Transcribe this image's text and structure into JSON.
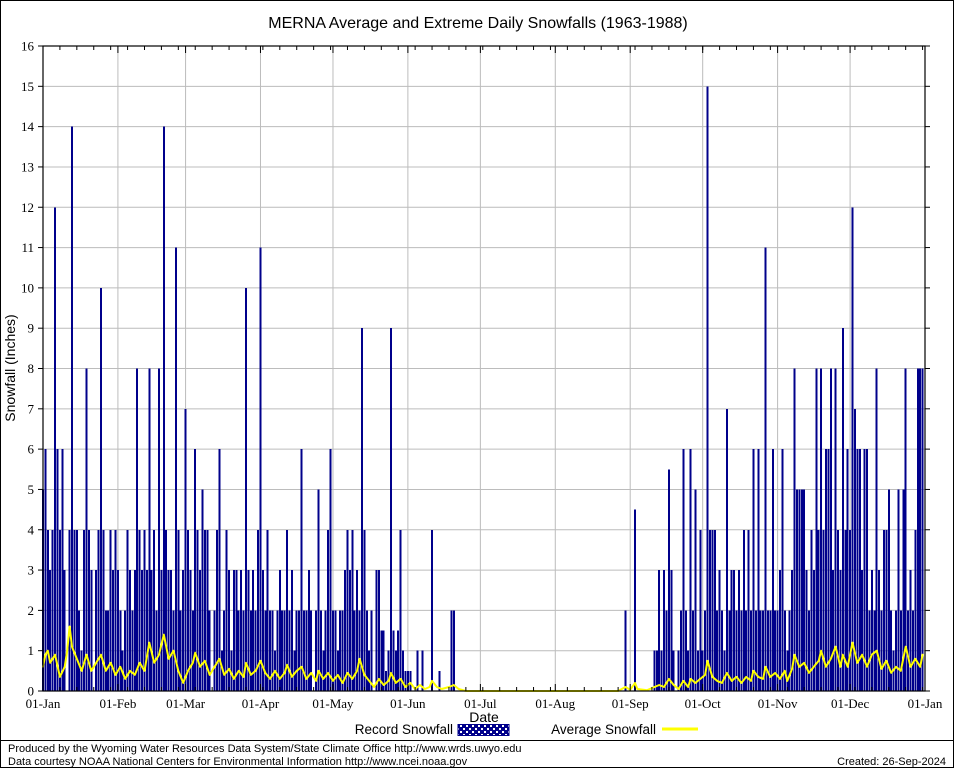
{
  "chart_data": {
    "type": "bar",
    "title": "MERNA Average and Extreme Daily Snowfalls (1963-1988)",
    "xlabel": "Date",
    "ylabel": "Snowfall (Inches)",
    "ylim": [
      0,
      16
    ],
    "y_tick_step": 1,
    "grid": true,
    "legend_position": "bottom",
    "days_in_year": 365,
    "x_tick_labels": [
      "01-Jan",
      "01-Feb",
      "01-Mar",
      "01-Apr",
      "01-May",
      "01-Jun",
      "01-Jul",
      "01-Aug",
      "01-Sep",
      "01-Oct",
      "01-Nov",
      "01-Dec",
      "01-Jan"
    ],
    "x_tick_days": [
      0,
      31,
      59,
      90,
      120,
      151,
      181,
      212,
      243,
      273,
      304,
      334,
      365
    ],
    "colors": {
      "record_bar": "#00008b",
      "average_line": "#ffff00",
      "grid": "#bcbcbc",
      "frame": "#000000"
    },
    "series": [
      {
        "name": "Record Snowfall",
        "render": "bar",
        "color": "#00008b",
        "values": [
          5,
          6,
          4,
          3,
          4,
          12,
          6,
          4,
          6,
          3,
          0,
          4,
          14,
          4,
          4,
          2,
          1,
          4,
          8,
          4,
          3,
          0,
          3,
          4,
          10,
          4,
          2,
          2,
          4,
          3,
          4,
          3,
          2,
          1,
          2,
          4,
          3,
          2,
          3,
          8,
          4,
          3,
          4,
          3,
          8,
          3,
          4,
          2,
          8,
          3,
          14,
          4,
          3,
          3,
          2,
          11,
          4,
          2,
          3,
          7,
          4,
          3,
          2,
          6,
          4,
          3,
          5,
          4,
          4,
          2,
          0,
          2,
          4,
          6,
          1,
          2,
          4,
          3,
          1,
          3,
          3,
          2,
          3,
          2,
          10,
          3,
          2,
          3,
          2,
          4,
          11,
          3,
          2,
          4,
          2,
          2,
          1,
          2,
          3,
          2,
          2,
          4,
          2,
          3,
          1,
          2,
          2,
          6,
          2,
          2,
          3,
          2,
          0,
          2,
          5,
          2,
          1,
          2,
          4,
          6,
          2,
          2,
          1,
          2,
          2,
          3,
          4,
          3,
          4,
          2,
          3,
          2,
          9,
          4,
          2,
          1,
          2,
          0,
          3,
          3,
          1.5,
          1.5,
          0.5,
          1,
          9,
          1.5,
          1,
          1.5,
          4,
          1,
          0.5,
          0.5,
          0.5,
          0,
          0,
          1,
          0,
          1,
          0,
          0,
          0,
          4,
          0,
          0,
          0.5,
          0,
          0,
          0,
          0,
          2,
          2,
          0,
          0,
          0,
          0,
          0,
          0,
          0,
          0,
          0,
          0,
          0,
          0,
          0,
          0,
          0,
          0,
          0,
          0,
          0,
          0,
          0,
          0,
          0,
          0,
          0,
          0,
          0,
          0,
          0,
          0,
          0,
          0,
          0,
          0,
          0,
          0,
          0,
          0,
          0,
          0,
          0,
          0,
          0,
          0,
          0,
          0,
          0,
          0,
          0,
          0,
          0,
          0,
          0,
          0,
          0,
          0,
          0,
          0,
          0,
          0,
          0,
          0,
          0,
          0,
          0,
          0,
          0,
          0,
          0,
          0,
          2,
          0,
          0,
          0,
          4.5,
          0,
          0,
          0,
          0,
          0,
          0,
          0,
          1,
          1,
          3,
          1,
          3,
          2,
          5.5,
          3,
          1,
          0,
          1,
          2,
          6,
          2,
          1,
          6,
          2,
          5,
          1,
          4,
          1,
          2,
          15,
          4,
          4,
          4,
          2,
          3,
          2,
          1,
          7,
          2,
          3,
          3,
          2,
          3,
          2,
          4,
          2,
          4,
          2,
          6,
          2,
          6,
          2,
          2,
          11,
          2,
          2,
          6,
          2,
          2,
          3,
          6,
          2,
          1,
          2,
          3,
          8,
          5,
          5,
          5,
          5,
          3,
          2,
          4,
          3,
          8,
          4,
          8,
          4,
          6,
          6,
          8,
          3,
          8,
          4,
          3,
          9,
          4,
          6,
          4,
          12,
          7,
          6,
          6,
          3,
          6,
          6,
          2,
          3,
          2,
          8,
          3,
          2,
          4,
          4,
          5,
          2,
          1,
          2,
          5,
          2,
          5,
          8,
          2,
          3,
          2,
          4,
          8,
          8,
          8
        ]
      },
      {
        "name": "Average Snowfall",
        "render": "line",
        "color": "#ffff00",
        "points": [
          [
            0,
            0.6
          ],
          [
            1,
            0.9
          ],
          [
            2,
            1.0
          ],
          [
            3,
            0.7
          ],
          [
            5,
            0.9
          ],
          [
            7,
            0.35
          ],
          [
            9,
            0.6
          ],
          [
            10,
            1.0
          ],
          [
            11,
            1.6
          ],
          [
            12,
            1.1
          ],
          [
            14,
            0.8
          ],
          [
            16,
            0.5
          ],
          [
            18,
            0.9
          ],
          [
            20,
            0.5
          ],
          [
            22,
            0.7
          ],
          [
            24,
            0.9
          ],
          [
            26,
            0.5
          ],
          [
            28,
            0.7
          ],
          [
            30,
            0.4
          ],
          [
            32,
            0.6
          ],
          [
            34,
            0.3
          ],
          [
            36,
            0.5
          ],
          [
            38,
            0.4
          ],
          [
            40,
            0.7
          ],
          [
            42,
            0.5
          ],
          [
            44,
            1.2
          ],
          [
            46,
            0.7
          ],
          [
            48,
            0.9
          ],
          [
            50,
            1.4
          ],
          [
            52,
            0.8
          ],
          [
            54,
            1.0
          ],
          [
            56,
            0.5
          ],
          [
            58,
            0.2
          ],
          [
            60,
            0.5
          ],
          [
            62,
            0.7
          ],
          [
            63,
            0.95
          ],
          [
            65,
            0.6
          ],
          [
            67,
            0.75
          ],
          [
            69,
            0.4
          ],
          [
            71,
            0.6
          ],
          [
            73,
            0.8
          ],
          [
            75,
            0.4
          ],
          [
            77,
            0.55
          ],
          [
            79,
            0.3
          ],
          [
            81,
            0.5
          ],
          [
            83,
            0.35
          ],
          [
            84,
            0.7
          ],
          [
            86,
            0.4
          ],
          [
            88,
            0.5
          ],
          [
            90,
            0.75
          ],
          [
            92,
            0.45
          ],
          [
            94,
            0.3
          ],
          [
            96,
            0.5
          ],
          [
            98,
            0.3
          ],
          [
            100,
            0.45
          ],
          [
            101,
            0.65
          ],
          [
            103,
            0.35
          ],
          [
            105,
            0.5
          ],
          [
            107,
            0.6
          ],
          [
            109,
            0.3
          ],
          [
            111,
            0.45
          ],
          [
            113,
            0.25
          ],
          [
            114,
            0.5
          ],
          [
            116,
            0.3
          ],
          [
            118,
            0.45
          ],
          [
            120,
            0.25
          ],
          [
            122,
            0.4
          ],
          [
            124,
            0.2
          ],
          [
            126,
            0.45
          ],
          [
            128,
            0.3
          ],
          [
            130,
            0.5
          ],
          [
            131,
            0.8
          ],
          [
            133,
            0.4
          ],
          [
            135,
            0.25
          ],
          [
            137,
            0.1
          ],
          [
            139,
            0.3
          ],
          [
            141,
            0.15
          ],
          [
            143,
            0.25
          ],
          [
            144,
            0.45
          ],
          [
            146,
            0.2
          ],
          [
            148,
            0.3
          ],
          [
            150,
            0.1
          ],
          [
            152,
            0.2
          ],
          [
            154,
            0.05
          ],
          [
            156,
            0.15
          ],
          [
            158,
            0.05
          ],
          [
            160,
            0.1
          ],
          [
            161,
            0.25
          ],
          [
            163,
            0.1
          ],
          [
            165,
            0.05
          ],
          [
            168,
            0.1
          ],
          [
            170,
            0.15
          ],
          [
            172,
            0.05
          ],
          [
            175,
            0
          ],
          [
            185,
            0
          ],
          [
            200,
            0
          ],
          [
            215,
            0
          ],
          [
            230,
            0
          ],
          [
            238,
            0
          ],
          [
            241,
            0.1
          ],
          [
            243,
            0.03
          ],
          [
            245,
            0.2
          ],
          [
            246,
            0.05
          ],
          [
            250,
            0.02
          ],
          [
            253,
            0.1
          ],
          [
            255,
            0.15
          ],
          [
            257,
            0.1
          ],
          [
            259,
            0.3
          ],
          [
            261,
            0.15
          ],
          [
            263,
            0.05
          ],
          [
            265,
            0.25
          ],
          [
            267,
            0.1
          ],
          [
            268,
            0.3
          ],
          [
            270,
            0.2
          ],
          [
            272,
            0.3
          ],
          [
            274,
            0.4
          ],
          [
            275,
            0.75
          ],
          [
            277,
            0.35
          ],
          [
            279,
            0.25
          ],
          [
            281,
            0.2
          ],
          [
            283,
            0.45
          ],
          [
            285,
            0.25
          ],
          [
            287,
            0.35
          ],
          [
            289,
            0.2
          ],
          [
            291,
            0.35
          ],
          [
            293,
            0.25
          ],
          [
            294,
            0.5
          ],
          [
            296,
            0.35
          ],
          [
            298,
            0.3
          ],
          [
            299,
            0.6
          ],
          [
            301,
            0.35
          ],
          [
            303,
            0.45
          ],
          [
            305,
            0.3
          ],
          [
            307,
            0.5
          ],
          [
            308,
            0.25
          ],
          [
            310,
            0.55
          ],
          [
            311,
            0.9
          ],
          [
            313,
            0.6
          ],
          [
            315,
            0.7
          ],
          [
            317,
            0.45
          ],
          [
            319,
            0.6
          ],
          [
            321,
            0.75
          ],
          [
            322,
            1.0
          ],
          [
            324,
            0.6
          ],
          [
            326,
            0.8
          ],
          [
            328,
            1.1
          ],
          [
            330,
            0.6
          ],
          [
            331,
            0.9
          ],
          [
            333,
            0.6
          ],
          [
            335,
            1.2
          ],
          [
            337,
            0.7
          ],
          [
            339,
            0.9
          ],
          [
            341,
            0.6
          ],
          [
            343,
            0.9
          ],
          [
            345,
            1.0
          ],
          [
            347,
            0.55
          ],
          [
            349,
            0.75
          ],
          [
            351,
            0.45
          ],
          [
            353,
            0.6
          ],
          [
            355,
            0.5
          ],
          [
            357,
            1.1
          ],
          [
            359,
            0.6
          ],
          [
            361,
            0.8
          ],
          [
            363,
            0.6
          ],
          [
            364,
            0.9
          ]
        ]
      }
    ]
  },
  "legend": {
    "record_label": "Record Snowfall",
    "average_label": "Average Snowfall"
  },
  "footer": {
    "line1": "Produced by the Wyoming Water Resources Data System/State Climate Office http://www.wrds.uwyo.edu",
    "line2": "Data courtesy NOAA National Centers for Environmental Information http://www.ncei.noaa.gov",
    "created": "Created: 26-Sep-2024"
  }
}
